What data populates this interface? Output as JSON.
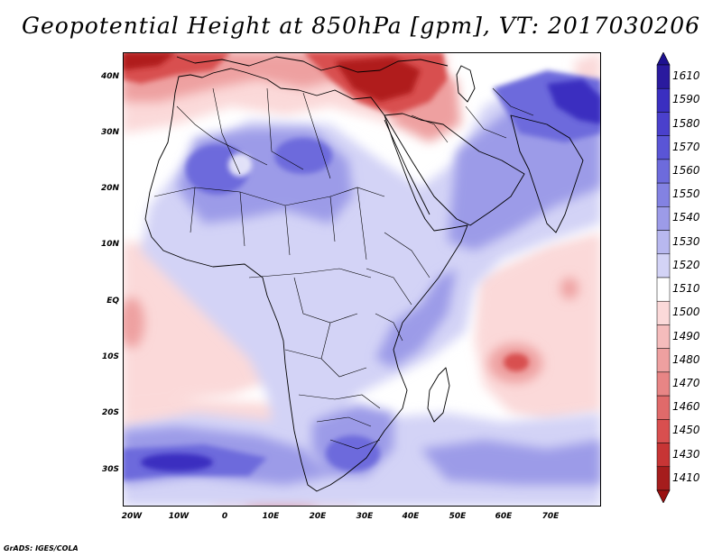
{
  "title": "Geopotential Height at 850hPa [gpm], VT: 2017030206",
  "credit": "GrADS: IGES/COLA",
  "latitude_labels": [
    "40N",
    "30N",
    "20N",
    "10N",
    "EQ",
    "10S",
    "20S",
    "30S"
  ],
  "longitude_labels": [
    "20W",
    "10W",
    "0",
    "10E",
    "20E",
    "30E",
    "40E",
    "50E",
    "60E",
    "70E"
  ],
  "colorbar": {
    "levels": [
      "1610",
      "1590",
      "1580",
      "1570",
      "1560",
      "1550",
      "1540",
      "1530",
      "1520",
      "1510",
      "1500",
      "1490",
      "1480",
      "1470",
      "1460",
      "1450",
      "1430",
      "1410"
    ],
    "colors": [
      "#2a1a9e",
      "#3a2fc0",
      "#4a40cc",
      "#5a55d6",
      "#6d6bdc",
      "#8382e2",
      "#9c9be8",
      "#b8b8ef",
      "#d3d3f6",
      "#ffffff",
      "#fbd9d9",
      "#f5bcbc",
      "#eea0a0",
      "#e88585",
      "#e06a6a",
      "#d84f4f",
      "#c73535",
      "#a51d1d"
    ],
    "top_arrow_color": "#1e1190",
    "bottom_arrow_color": "#9a1010"
  },
  "map_palette": {
    "background": "#ffffff",
    "high_light": "#d3d3f6",
    "high_mid": "#9c9be8",
    "high_strong": "#6d6bdc",
    "high_max": "#3a2fc0",
    "low_light": "#fbd9d9",
    "low_mid": "#eea0a0",
    "low_strong": "#d84f4f",
    "low_max": "#b01c1c",
    "coastline": "#000000"
  }
}
